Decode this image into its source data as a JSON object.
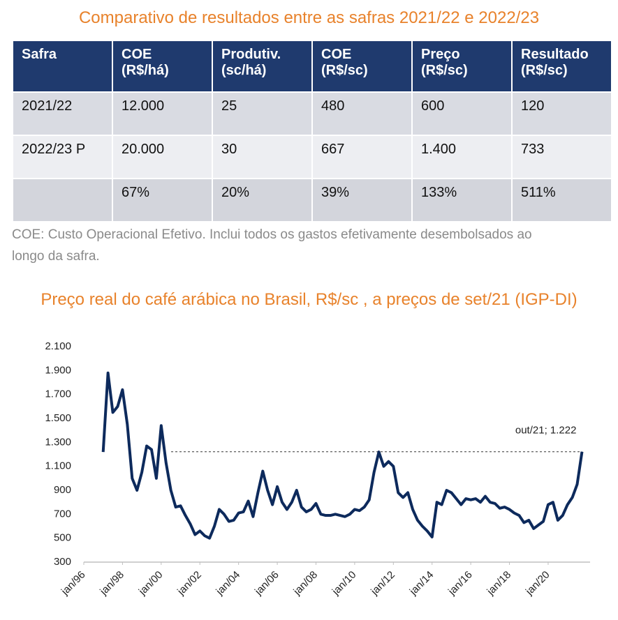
{
  "table": {
    "title": "Comparativo de resultados entre as safras 2021/22 e 2022/23",
    "header": [
      [
        "Safra"
      ],
      [
        "COE",
        "(R$/há)"
      ],
      [
        "Produtiv.",
        "(sc/há)"
      ],
      [
        "COE",
        "(R$/sc)"
      ],
      [
        "Preço",
        "(R$/sc)"
      ],
      [
        "Resultado",
        "(R$/sc)"
      ]
    ],
    "rows": [
      [
        "2021/22",
        "12.000",
        "25",
        "480",
        "600",
        "120"
      ],
      [
        "2022/23 P",
        "20.000",
        "30",
        "667",
        "1.400",
        "733"
      ],
      [
        null,
        "67%",
        "20%",
        "39%",
        "133%",
        "511%"
      ]
    ],
    "note": "COE: Custo Operacional Efetivo. Inclui todos os gastos efetivamente desembolsados ao longo da safra."
  },
  "chart_data": {
    "type": "line",
    "title": "Preço real do café arábica no Brasil, R$/sc , a preços de set/21  (IGP-DI)",
    "annotation": "out/21; 1.222",
    "x": [
      "1997-01",
      "1997-04",
      "1997-07",
      "1997-10",
      "1998-01",
      "1998-04",
      "1998-07",
      "1998-10",
      "1999-01",
      "1999-04",
      "1999-07",
      "1999-10",
      "2000-01",
      "2000-04",
      "2000-07",
      "2000-10",
      "2001-01",
      "2001-04",
      "2001-07",
      "2001-10",
      "2002-01",
      "2002-04",
      "2002-07",
      "2002-10",
      "2003-01",
      "2003-04",
      "2003-07",
      "2003-10",
      "2004-01",
      "2004-04",
      "2004-07",
      "2004-10",
      "2005-01",
      "2005-04",
      "2005-07",
      "2005-10",
      "2006-01",
      "2006-04",
      "2006-07",
      "2006-10",
      "2007-01",
      "2007-04",
      "2007-07",
      "2007-10",
      "2008-01",
      "2008-04",
      "2008-07",
      "2008-10",
      "2009-01",
      "2009-04",
      "2009-07",
      "2009-10",
      "2010-01",
      "2010-04",
      "2010-07",
      "2010-10",
      "2011-01",
      "2011-04",
      "2011-07",
      "2011-10",
      "2012-01",
      "2012-04",
      "2012-07",
      "2012-10",
      "2013-01",
      "2013-04",
      "2013-07",
      "2013-10",
      "2014-01",
      "2014-04",
      "2014-07",
      "2014-10",
      "2015-01",
      "2015-04",
      "2015-07",
      "2015-10",
      "2016-01",
      "2016-04",
      "2016-07",
      "2016-10",
      "2017-01",
      "2017-04",
      "2017-07",
      "2017-10",
      "2018-01",
      "2018-04",
      "2018-07",
      "2018-10",
      "2019-01",
      "2019-04",
      "2019-07",
      "2019-10",
      "2020-01",
      "2020-04",
      "2020-07",
      "2020-10",
      "2021-01",
      "2021-04",
      "2021-07",
      "2021-10"
    ],
    "series": [
      {
        "color": "#0d2a5c",
        "values": [
          1220,
          1880,
          1550,
          1600,
          1740,
          1450,
          1000,
          900,
          1050,
          1270,
          1240,
          1000,
          1440,
          1130,
          900,
          760,
          770,
          690,
          620,
          530,
          560,
          520,
          500,
          600,
          740,
          700,
          640,
          650,
          710,
          720,
          810,
          680,
          880,
          1060,
          900,
          780,
          930,
          800,
          740,
          800,
          900,
          760,
          720,
          740,
          790,
          700,
          690,
          690,
          700,
          690,
          680,
          700,
          740,
          730,
          760,
          820,
          1050,
          1220,
          1100,
          1140,
          1100,
          880,
          840,
          880,
          740,
          650,
          600,
          560,
          510,
          800,
          780,
          900,
          880,
          830,
          780,
          830,
          820,
          830,
          800,
          850,
          800,
          790,
          750,
          760,
          740,
          710,
          690,
          630,
          650,
          580,
          610,
          640,
          780,
          800,
          650,
          690,
          780,
          840,
          950,
          1222
        ]
      }
    ],
    "xlim": [
      "1996-01",
      "2022-03"
    ],
    "xticks": [
      {
        "value": "1996-01",
        "label": "jan/96"
      },
      {
        "value": "1998-01",
        "label": "jan/98"
      },
      {
        "value": "2000-01",
        "label": "jan/00"
      },
      {
        "value": "2002-01",
        "label": "jan/02"
      },
      {
        "value": "2004-01",
        "label": "jan/04"
      },
      {
        "value": "2006-01",
        "label": "jan/06"
      },
      {
        "value": "2008-01",
        "label": "jan/08"
      },
      {
        "value": "2010-01",
        "label": "jan/10"
      },
      {
        "value": "2012-01",
        "label": "jan/12"
      },
      {
        "value": "2014-01",
        "label": "jan/14"
      },
      {
        "value": "2016-01",
        "label": "jan/16"
      },
      {
        "value": "2018-01",
        "label": "jan/18"
      },
      {
        "value": "2020-01",
        "label": "jan/20"
      }
    ],
    "ylim": [
      300,
      2100
    ],
    "yticks": [
      300,
      500,
      700,
      900,
      {
        "value": 1100,
        "label": "1.100"
      },
      {
        "value": 1300,
        "label": "1.300"
      },
      {
        "value": 1500,
        "label": "1.500"
      },
      {
        "value": 1700,
        "label": "1.700"
      },
      {
        "value": 1900,
        "label": "1.900"
      },
      {
        "value": 2100,
        "label": "2.100"
      }
    ],
    "grid": false
  }
}
